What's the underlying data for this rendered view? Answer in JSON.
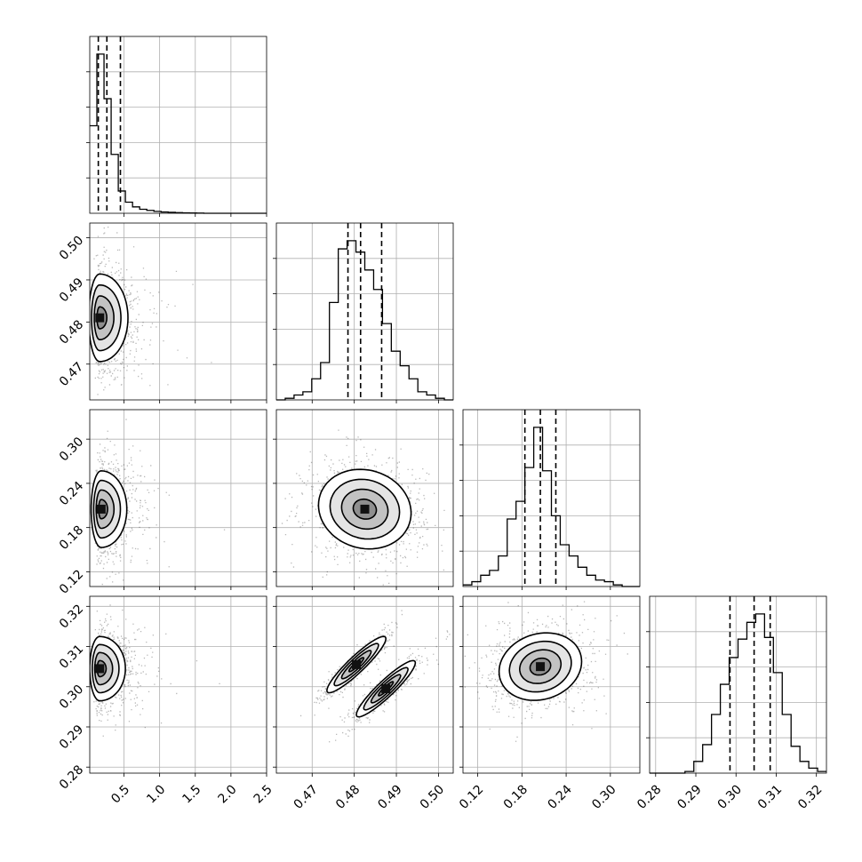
{
  "chart_data": {
    "type": "corner",
    "grid": true,
    "parameters": [
      {
        "range": [
          0.02,
          2.5
        ],
        "ticks": [
          0.5,
          1.0,
          1.5,
          2.0,
          2.5
        ],
        "tick_labels": [
          "0.5",
          "1.0",
          "1.5",
          "2.0",
          "2.5"
        ],
        "quantiles": [
          0.14,
          0.26,
          0.45
        ]
      },
      {
        "range": [
          0.4615,
          0.5035
        ],
        "ticks": [
          0.47,
          0.48,
          0.49,
          0.5
        ],
        "tick_labels": [
          "0.47",
          "0.48",
          "0.49",
          "0.50"
        ],
        "quantiles": [
          0.4785,
          0.4815,
          0.4865
        ]
      },
      {
        "range": [
          0.1,
          0.34
        ],
        "ticks": [
          0.12,
          0.18,
          0.24,
          0.3
        ],
        "tick_labels": [
          "0.12",
          "0.18",
          "0.24",
          "0.30"
        ],
        "quantiles": [
          0.184,
          0.205,
          0.226
        ]
      },
      {
        "range": [
          0.2785,
          0.3225
        ],
        "ticks": [
          0.28,
          0.29,
          0.3,
          0.31,
          0.32
        ],
        "tick_labels": [
          "0.28",
          "0.29",
          "0.30",
          "0.31",
          "0.32"
        ],
        "quantiles": [
          0.2985,
          0.3045,
          0.3085
        ]
      }
    ],
    "histograms": [
      {
        "bin_edges": [
          0.02,
          0.12,
          0.22,
          0.32,
          0.42,
          0.52,
          0.62,
          0.72,
          0.82,
          0.92,
          1.02,
          1.12,
          1.22,
          1.32,
          1.42,
          1.52,
          1.62,
          1.72,
          1.82,
          1.92,
          2.02,
          2.12,
          2.22,
          2.32,
          2.42,
          2.5
        ],
        "counts": [
          0.55,
          1.0,
          0.72,
          0.37,
          0.14,
          0.07,
          0.04,
          0.025,
          0.018,
          0.012,
          0.008,
          0.006,
          0.004,
          0.003,
          0.002,
          0.001,
          0.0,
          0.0,
          0.0,
          0.0,
          0.0,
          0.0,
          0.0,
          0.0,
          0.0
        ]
      },
      {
        "bin_edges": [
          0.4615,
          0.4636,
          0.4657,
          0.4678,
          0.4699,
          0.472,
          0.4741,
          0.4762,
          0.4783,
          0.4804,
          0.4825,
          0.4846,
          0.4867,
          0.4888,
          0.4909,
          0.493,
          0.4951,
          0.4972,
          0.4993,
          0.5014,
          0.5035
        ],
        "counts": [
          0.0,
          0.01,
          0.03,
          0.05,
          0.13,
          0.23,
          0.6,
          0.93,
          0.98,
          0.91,
          0.8,
          0.68,
          0.47,
          0.3,
          0.21,
          0.13,
          0.05,
          0.03,
          0.01,
          0.0
        ]
      },
      {
        "bin_edges": [
          0.1,
          0.112,
          0.124,
          0.136,
          0.148,
          0.16,
          0.172,
          0.184,
          0.196,
          0.208,
          0.22,
          0.232,
          0.244,
          0.256,
          0.268,
          0.28,
          0.292,
          0.304,
          0.316,
          0.328,
          0.34
        ],
        "counts": [
          0.01,
          0.03,
          0.07,
          0.1,
          0.19,
          0.42,
          0.53,
          0.74,
          0.99,
          0.72,
          0.44,
          0.26,
          0.19,
          0.12,
          0.07,
          0.04,
          0.03,
          0.01,
          0.0,
          0.0
        ]
      },
      {
        "bin_edges": [
          0.2785,
          0.2807,
          0.2829,
          0.2851,
          0.2873,
          0.2895,
          0.2917,
          0.2939,
          0.2961,
          0.2983,
          0.3005,
          0.3027,
          0.3049,
          0.3071,
          0.3093,
          0.3115,
          0.3137,
          0.3159,
          0.3181,
          0.3203,
          0.3225
        ],
        "counts": [
          0.0,
          0.0,
          0.0,
          0.0,
          0.01,
          0.07,
          0.17,
          0.35,
          0.53,
          0.69,
          0.8,
          0.9,
          0.95,
          0.81,
          0.6,
          0.35,
          0.16,
          0.07,
          0.03,
          0.01
        ]
      }
    ],
    "pairs": [
      {
        "x_param": 0,
        "y_param": 1,
        "center": [
          0.16,
          0.481
        ],
        "sigma": [
          0.22,
          0.0052
        ],
        "rho": 0.0,
        "contour_levels": [
          0.5,
          1.0,
          1.5,
          2.0
        ]
      },
      {
        "x_param": 0,
        "y_param": 2,
        "center": [
          0.18,
          0.205
        ],
        "sigma": [
          0.2,
          0.026
        ],
        "rho": 0.0,
        "contour_levels": [
          0.5,
          1.0,
          1.5,
          2.0
        ]
      },
      {
        "x_param": 1,
        "y_param": 2,
        "center": [
          0.4825,
          0.205
        ],
        "sigma": [
          0.0055,
          0.027
        ],
        "rho": -0.1,
        "contour_levels": [
          0.5,
          1.0,
          1.5,
          2.0
        ]
      },
      {
        "x_param": 0,
        "y_param": 3,
        "center": [
          0.16,
          0.3045
        ],
        "sigma": [
          0.2,
          0.004
        ],
        "rho": 0.0,
        "contour_levels": [
          0.5,
          1.0,
          1.5,
          2.0
        ]
      },
      {
        "x_param": 1,
        "y_param": 3,
        "blobs": [
          {
            "center": [
              0.4805,
              0.3055
            ],
            "sigma": [
              0.0035,
              0.0035
            ],
            "rho": 0.92
          },
          {
            "center": [
              0.4875,
              0.2995
            ],
            "sigma": [
              0.0035,
              0.0035
            ],
            "rho": 0.92
          }
        ],
        "contour_levels": [
          0.5,
          1.0,
          1.5,
          2.0
        ]
      },
      {
        "x_param": 2,
        "y_param": 3,
        "center": [
          0.205,
          0.305
        ],
        "sigma": [
          0.028,
          0.0042
        ],
        "rho": 0.15,
        "contour_levels": [
          0.5,
          1.0,
          1.5,
          2.0
        ]
      }
    ]
  }
}
